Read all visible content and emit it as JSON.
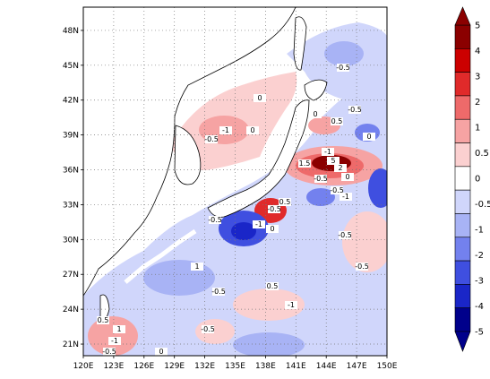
{
  "map": {
    "lat_labels": [
      "48N",
      "45N",
      "42N",
      "39N",
      "36N",
      "33N",
      "30N",
      "27N",
      "24N",
      "21N"
    ],
    "lon_labels": [
      "120E",
      "123E",
      "126E",
      "129E",
      "132E",
      "135E",
      "138E",
      "141E",
      "144E",
      "147E",
      "150E"
    ],
    "lon_range": [
      120,
      150
    ],
    "lat_range": [
      20,
      50
    ],
    "grid": "dotted",
    "contour_labels": [
      "-0.5",
      "-0.5",
      "-1",
      "0",
      "0.5",
      "1",
      "-1",
      "0",
      "-0.5",
      "0.5",
      "1.5",
      "-1",
      "5",
      "2",
      "-0.5",
      "0",
      "-0.5",
      "-1",
      "0",
      "0.5",
      "-0.5",
      "-1",
      "0",
      "-0.5",
      "-0.5",
      "-1",
      "-0.5",
      "1",
      "0.5",
      "-0.5",
      "-0.5",
      "0",
      "-0.5",
      "0"
    ]
  },
  "colorbar": {
    "levels": [
      "5",
      "4",
      "3",
      "2",
      "1",
      "0.5",
      "0",
      "-0.5",
      "-1",
      "-2",
      "-3",
      "-4",
      "-5"
    ],
    "colors": [
      "#8b0000",
      "#cc0000",
      "#e02a2a",
      "#ee6a6a",
      "#f6a3a3",
      "#fbd0d0",
      "#ffffff",
      "#d0d6fb",
      "#a8b3f5",
      "#7381ee",
      "#3f4fe0",
      "#1a26c8",
      "#00008b"
    ]
  }
}
